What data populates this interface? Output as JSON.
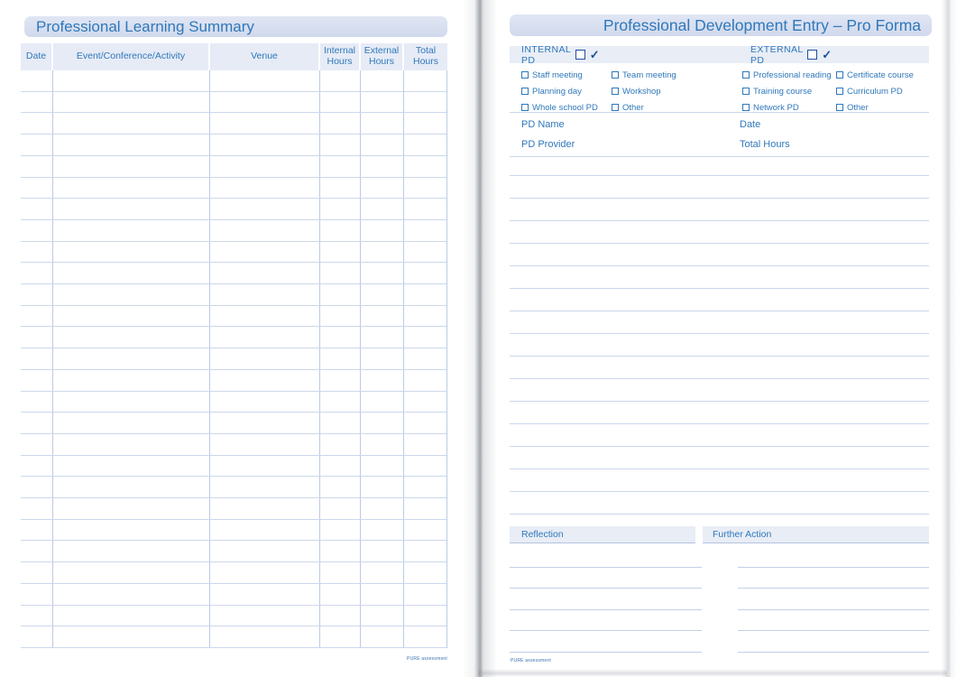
{
  "colors": {
    "accent_blue": "#2f78ba",
    "navy": "#1f4f9f",
    "band_bg": "#e8edf6",
    "titlebar_bg": "#d5ddef",
    "line": "#ccd6ec"
  },
  "left_page": {
    "title": "Professional Learning Summary",
    "table": {
      "columns": [
        "Date",
        "Event/Conference/Activity",
        "Venue",
        "Internal Hours",
        "External Hours",
        "Total Hours"
      ],
      "row_count": 27
    },
    "footer": "PURE assessment"
  },
  "right_page": {
    "title": "Professional Development Entry – Pro Forma",
    "band": {
      "internal_label": "INTERNAL PD",
      "external_label": "EXTERNAL PD",
      "check_glyph": "✓"
    },
    "checkbox_columns": [
      {
        "group": "internal-col-1",
        "items": [
          {
            "label": "Staff meeting"
          },
          {
            "label": "Planning day"
          },
          {
            "label": "Whole school PD"
          }
        ]
      },
      {
        "group": "internal-col-2",
        "items": [
          {
            "label": "Team meeting"
          },
          {
            "label": "Workshop"
          },
          {
            "label": "Other",
            "blank_line": true
          }
        ]
      },
      {
        "group": "external-col-1",
        "items": [
          {
            "label": "Professional reading"
          },
          {
            "label": "Training course"
          },
          {
            "label": "Network PD"
          }
        ]
      },
      {
        "group": "external-col-2",
        "items": [
          {
            "label": "Certificate course"
          },
          {
            "label": "Curriculum PD"
          },
          {
            "label": "Other",
            "blank_line": true
          }
        ]
      }
    ],
    "fields": {
      "pd_name": "PD Name",
      "date": "Date",
      "pd_provider": "PD Provider",
      "total_hours": "Total Hours"
    },
    "notes": {
      "line_count": 16
    },
    "sections": {
      "reflection": "Reflection",
      "further_action": "Further Action",
      "line_count": 5
    },
    "footer": "PURE assessment"
  }
}
